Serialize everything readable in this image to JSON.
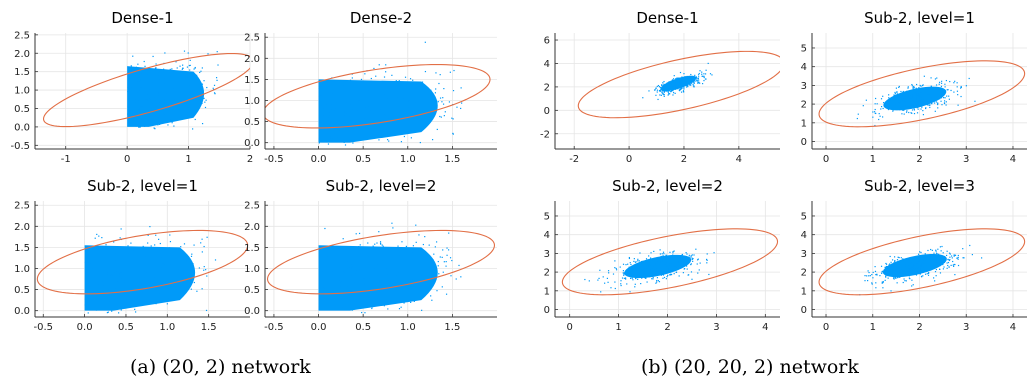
{
  "colors": {
    "scatter": "#009af9",
    "ellipse": "#e26f46",
    "axis": "#333333",
    "grid": "#e5e5e5"
  },
  "captions": {
    "a": "(a) (20, 2) network",
    "b": "(b) (20, 20, 2) network"
  },
  "chart_data": [
    {
      "type": "scatter",
      "title": "Dense-1",
      "group": "a",
      "xlim": [
        -1.5,
        2.0
      ],
      "ylim": [
        -0.6,
        2.55
      ],
      "xticks": [
        -1,
        0,
        1,
        2
      ],
      "xtick_labels": [
        "-1",
        "0",
        "1",
        "2"
      ],
      "yticks": [
        -0.5,
        0,
        0.5,
        1,
        1.5,
        2,
        2.5
      ],
      "ytick_labels": [
        "-0.5",
        "0.0",
        "0.5",
        "1.0",
        "1.5",
        "2.0",
        "2.5"
      ],
      "cloud": {
        "shape": "clipped-left",
        "x_min": 0.0,
        "x_max": 1.5,
        "y_low": 0.0,
        "y_high": 1.65,
        "y_top_right": 1.5
      },
      "ellipse": {
        "cx": 0.35,
        "cy": 1.0,
        "rx": 1.9,
        "ry": 0.55,
        "angle_deg": 27
      }
    },
    {
      "type": "scatter",
      "title": "Dense-2",
      "group": "a",
      "xlim": [
        -0.6,
        2.0
      ],
      "ylim": [
        -0.15,
        2.6
      ],
      "xticks": [
        -0.5,
        0,
        0.5,
        1,
        1.5
      ],
      "xtick_labels": [
        "-0.5",
        "0.0",
        "0.5",
        "1.0",
        "1.5"
      ],
      "yticks": [
        0,
        0.5,
        1,
        1.5,
        2,
        2.5
      ],
      "ytick_labels": [
        "0.0",
        "0.5",
        "1.0",
        "1.5",
        "2.0",
        "2.5"
      ],
      "cloud": {
        "shape": "clipped-left",
        "x_min": 0.0,
        "x_max": 1.6,
        "y_low": 0.0,
        "y_high": 1.5,
        "y_top_right": 1.45
      },
      "ellipse": {
        "cx": 0.65,
        "cy": 1.1,
        "rx": 1.35,
        "ry": 0.6,
        "angle_deg": 22
      }
    },
    {
      "type": "scatter",
      "title": "Sub-2, level=1",
      "group": "a",
      "xlim": [
        -0.6,
        2.0
      ],
      "ylim": [
        -0.15,
        2.6
      ],
      "xticks": [
        -0.5,
        0,
        0.5,
        1,
        1.5
      ],
      "xtick_labels": [
        "-0.5",
        "0.0",
        "0.5",
        "1.0",
        "1.5"
      ],
      "yticks": [
        0,
        0.5,
        1,
        1.5,
        2,
        2.5
      ],
      "ytick_labels": [
        "0.0",
        "0.5",
        "1.0",
        "1.5",
        "2.0",
        "2.5"
      ],
      "cloud": {
        "shape": "clipped-left",
        "x_min": 0.0,
        "x_max": 1.6,
        "y_low": 0.0,
        "y_high": 1.55,
        "y_top_right": 1.5
      },
      "ellipse": {
        "cx": 0.7,
        "cy": 1.15,
        "rx": 1.35,
        "ry": 0.6,
        "angle_deg": 22
      }
    },
    {
      "type": "scatter",
      "title": "Sub-2, level=2",
      "group": "a",
      "xlim": [
        -0.6,
        2.0
      ],
      "ylim": [
        -0.15,
        2.6
      ],
      "xticks": [
        -0.5,
        0,
        0.5,
        1,
        1.5
      ],
      "xtick_labels": [
        "-0.5",
        "0.0",
        "0.5",
        "1.0",
        "1.5"
      ],
      "yticks": [
        0,
        0.5,
        1,
        1.5,
        2,
        2.5
      ],
      "ytick_labels": [
        "0.0",
        "0.5",
        "1.0",
        "1.5",
        "2.0",
        "2.5"
      ],
      "cloud": {
        "shape": "clipped-left",
        "x_min": 0.0,
        "x_max": 1.6,
        "y_low": 0.0,
        "y_high": 1.55,
        "y_top_right": 1.5
      },
      "ellipse": {
        "cx": 0.7,
        "cy": 1.15,
        "rx": 1.35,
        "ry": 0.6,
        "angle_deg": 22
      }
    },
    {
      "type": "scatter",
      "title": "Dense-1",
      "group": "b",
      "xlim": [
        -2.7,
        5.5
      ],
      "ylim": [
        -3.3,
        6.6
      ],
      "xticks": [
        -2,
        0,
        2,
        4
      ],
      "xtick_labels": [
        "-2",
        "0",
        "2",
        "4"
      ],
      "yticks": [
        -2,
        0,
        2,
        4,
        6
      ],
      "ytick_labels": [
        "-2",
        "0",
        "2",
        "4",
        "6"
      ],
      "cloud": {
        "shape": "blob",
        "cx": 1.8,
        "cy": 2.3,
        "rx": 1.1,
        "ry": 0.45,
        "angle_deg": 45
      },
      "ellipse": {
        "cx": 1.9,
        "cy": 2.2,
        "rx": 4.3,
        "ry": 1.9,
        "angle_deg": 33
      }
    },
    {
      "type": "scatter",
      "title": "Sub-2, level=1",
      "group": "b",
      "xlim": [
        -0.3,
        4.3
      ],
      "ylim": [
        -0.4,
        5.8
      ],
      "xticks": [
        0,
        1,
        2,
        3,
        4
      ],
      "xtick_labels": [
        "0",
        "1",
        "2",
        "3",
        "4"
      ],
      "yticks": [
        0,
        1,
        2,
        3,
        4,
        5
      ],
      "ytick_labels": [
        "0",
        "1",
        "2",
        "3",
        "4",
        "5"
      ],
      "cloud": {
        "shape": "blob",
        "cx": 1.9,
        "cy": 2.3,
        "rx": 1.05,
        "ry": 0.55,
        "angle_deg": 42
      },
      "ellipse": {
        "cx": 2.05,
        "cy": 2.55,
        "rx": 2.55,
        "ry": 1.2,
        "angle_deg": 35
      }
    },
    {
      "type": "scatter",
      "title": "Sub-2, level=2",
      "group": "b",
      "xlim": [
        -0.3,
        4.3
      ],
      "ylim": [
        -0.4,
        5.8
      ],
      "xticks": [
        0,
        1,
        2,
        3,
        4
      ],
      "xtick_labels": [
        "0",
        "1",
        "2",
        "3",
        "4"
      ],
      "yticks": [
        0,
        1,
        2,
        3,
        4,
        5
      ],
      "ytick_labels": [
        "0",
        "1",
        "2",
        "3",
        "4",
        "5"
      ],
      "cloud": {
        "shape": "blob",
        "cx": 1.8,
        "cy": 2.3,
        "rx": 1.05,
        "ry": 0.55,
        "angle_deg": 40
      },
      "ellipse": {
        "cx": 2.05,
        "cy": 2.55,
        "rx": 2.55,
        "ry": 1.2,
        "angle_deg": 35
      }
    },
    {
      "type": "scatter",
      "title": "Sub-2, level=3",
      "group": "b",
      "xlim": [
        -0.3,
        4.3
      ],
      "ylim": [
        -0.4,
        5.8
      ],
      "xticks": [
        0,
        1,
        2,
        3,
        4
      ],
      "xtick_labels": [
        "0",
        "1",
        "2",
        "3",
        "4"
      ],
      "yticks": [
        0,
        1,
        2,
        3,
        4,
        5
      ],
      "ytick_labels": [
        "0",
        "1",
        "2",
        "3",
        "4",
        "5"
      ],
      "cloud": {
        "shape": "blob",
        "cx": 1.9,
        "cy": 2.35,
        "rx": 1.05,
        "ry": 0.55,
        "angle_deg": 40
      },
      "ellipse": {
        "cx": 2.05,
        "cy": 2.55,
        "rx": 2.55,
        "ry": 1.2,
        "angle_deg": 35
      }
    }
  ]
}
